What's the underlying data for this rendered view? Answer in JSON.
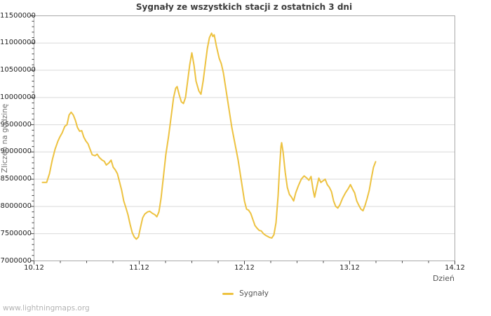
{
  "page": {
    "title": "Sygnały ze wszystkich stacji z ostatnich 3 dni",
    "watermark": "www.lightningmaps.org"
  },
  "colors": {
    "line": "#edc240",
    "grid": "#d9d9d9",
    "border": "#aaaaaa",
    "tick": "#444444"
  },
  "chart_data": {
    "type": "line",
    "title": "Sygnały ze wszystkich stacji z ostatnich 3 dni",
    "xlabel": "Dzień",
    "ylabel": "Zliczeń na godzinę",
    "grid": "horizontal-only",
    "line_color": "#edc240",
    "ylim": [
      7000000,
      11500000
    ],
    "y_tick_step": 500000,
    "y_minor_step": 100000,
    "y_ticks": [
      {
        "value": 7000000,
        "label": "7000000"
      },
      {
        "value": 7500000,
        "label": "7500000"
      },
      {
        "value": 8000000,
        "label": "8000000"
      },
      {
        "value": 8500000,
        "label": "8500000"
      },
      {
        "value": 9000000,
        "label": "9000000"
      },
      {
        "value": 9500000,
        "label": "9500000"
      },
      {
        "value": 10000000,
        "label": "10000000"
      },
      {
        "value": 10500000,
        "label": "10500000"
      },
      {
        "value": 11000000,
        "label": "11000000"
      },
      {
        "value": 11500000,
        "label": "11500000"
      }
    ],
    "x_range_days": [
      0,
      4
    ],
    "x_minor_step_days": 0.25,
    "x_ticks": [
      {
        "day": 0,
        "label": "10.12"
      },
      {
        "day": 1,
        "label": "11.12"
      },
      {
        "day": 2,
        "label": "12.12"
      },
      {
        "day": 3,
        "label": "13.12"
      },
      {
        "day": 4,
        "label": "14.12"
      }
    ],
    "legend": {
      "position": "bottom-center",
      "entries": [
        {
          "label": "Sygnały",
          "color": "#edc240"
        }
      ]
    },
    "series": [
      {
        "name": "Sygnały",
        "points": [
          [
            0.08,
            8440000
          ],
          [
            0.12,
            8440000
          ],
          [
            0.147,
            8600000
          ],
          [
            0.173,
            8850000
          ],
          [
            0.2,
            9050000
          ],
          [
            0.227,
            9200000
          ],
          [
            0.247,
            9280000
          ],
          [
            0.267,
            9350000
          ],
          [
            0.293,
            9470000
          ],
          [
            0.313,
            9500000
          ],
          [
            0.333,
            9680000
          ],
          [
            0.353,
            9730000
          ],
          [
            0.373,
            9680000
          ],
          [
            0.393,
            9580000
          ],
          [
            0.413,
            9450000
          ],
          [
            0.433,
            9380000
          ],
          [
            0.453,
            9390000
          ],
          [
            0.473,
            9270000
          ],
          [
            0.493,
            9200000
          ],
          [
            0.513,
            9150000
          ],
          [
            0.533,
            9050000
          ],
          [
            0.553,
            8950000
          ],
          [
            0.58,
            8930000
          ],
          [
            0.6,
            8960000
          ],
          [
            0.62,
            8900000
          ],
          [
            0.647,
            8850000
          ],
          [
            0.667,
            8830000
          ],
          [
            0.687,
            8760000
          ],
          [
            0.713,
            8800000
          ],
          [
            0.733,
            8850000
          ],
          [
            0.753,
            8720000
          ],
          [
            0.773,
            8670000
          ],
          [
            0.793,
            8600000
          ],
          [
            0.813,
            8450000
          ],
          [
            0.833,
            8300000
          ],
          [
            0.853,
            8100000
          ],
          [
            0.873,
            7980000
          ],
          [
            0.893,
            7850000
          ],
          [
            0.913,
            7670000
          ],
          [
            0.933,
            7520000
          ],
          [
            0.953,
            7440000
          ],
          [
            0.973,
            7400000
          ],
          [
            0.993,
            7440000
          ],
          [
            1.013,
            7620000
          ],
          [
            1.033,
            7790000
          ],
          [
            1.053,
            7860000
          ],
          [
            1.08,
            7900000
          ],
          [
            1.1,
            7910000
          ],
          [
            1.127,
            7870000
          ],
          [
            1.147,
            7850000
          ],
          [
            1.167,
            7810000
          ],
          [
            1.187,
            7900000
          ],
          [
            1.207,
            8150000
          ],
          [
            1.227,
            8500000
          ],
          [
            1.253,
            8950000
          ],
          [
            1.28,
            9300000
          ],
          [
            1.307,
            9700000
          ],
          [
            1.327,
            10000000
          ],
          [
            1.347,
            10170000
          ],
          [
            1.36,
            10200000
          ],
          [
            1.38,
            10050000
          ],
          [
            1.4,
            9920000
          ],
          [
            1.42,
            9890000
          ],
          [
            1.44,
            10000000
          ],
          [
            1.46,
            10300000
          ],
          [
            1.48,
            10600000
          ],
          [
            1.5,
            10820000
          ],
          [
            1.52,
            10600000
          ],
          [
            1.54,
            10300000
          ],
          [
            1.567,
            10120000
          ],
          [
            1.587,
            10060000
          ],
          [
            1.607,
            10300000
          ],
          [
            1.627,
            10600000
          ],
          [
            1.647,
            10900000
          ],
          [
            1.667,
            11100000
          ],
          [
            1.687,
            11180000
          ],
          [
            1.7,
            11120000
          ],
          [
            1.713,
            11150000
          ],
          [
            1.733,
            10950000
          ],
          [
            1.76,
            10720000
          ],
          [
            1.78,
            10620000
          ],
          [
            1.8,
            10450000
          ],
          [
            1.82,
            10200000
          ],
          [
            1.84,
            9950000
          ],
          [
            1.86,
            9700000
          ],
          [
            1.88,
            9450000
          ],
          [
            1.9,
            9250000
          ],
          [
            1.92,
            9050000
          ],
          [
            1.94,
            8850000
          ],
          [
            1.96,
            8600000
          ],
          [
            1.98,
            8350000
          ],
          [
            2.0,
            8100000
          ],
          [
            2.02,
            7950000
          ],
          [
            2.04,
            7930000
          ],
          [
            2.06,
            7870000
          ],
          [
            2.08,
            7760000
          ],
          [
            2.1,
            7650000
          ],
          [
            2.12,
            7600000
          ],
          [
            2.14,
            7560000
          ],
          [
            2.16,
            7550000
          ],
          [
            2.18,
            7500000
          ],
          [
            2.2,
            7470000
          ],
          [
            2.22,
            7450000
          ],
          [
            2.24,
            7430000
          ],
          [
            2.26,
            7420000
          ],
          [
            2.28,
            7480000
          ],
          [
            2.3,
            7700000
          ],
          [
            2.32,
            8200000
          ],
          [
            2.333,
            8700000
          ],
          [
            2.347,
            9100000
          ],
          [
            2.353,
            9170000
          ],
          [
            2.367,
            9000000
          ],
          [
            2.387,
            8630000
          ],
          [
            2.407,
            8350000
          ],
          [
            2.427,
            8220000
          ],
          [
            2.447,
            8170000
          ],
          [
            2.467,
            8100000
          ],
          [
            2.487,
            8250000
          ],
          [
            2.513,
            8380000
          ],
          [
            2.54,
            8500000
          ],
          [
            2.567,
            8560000
          ],
          [
            2.593,
            8520000
          ],
          [
            2.613,
            8480000
          ],
          [
            2.633,
            8550000
          ],
          [
            2.653,
            8300000
          ],
          [
            2.667,
            8170000
          ],
          [
            2.687,
            8350000
          ],
          [
            2.707,
            8520000
          ],
          [
            2.727,
            8440000
          ],
          [
            2.747,
            8470000
          ],
          [
            2.767,
            8500000
          ],
          [
            2.787,
            8400000
          ],
          [
            2.807,
            8350000
          ],
          [
            2.827,
            8270000
          ],
          [
            2.847,
            8100000
          ],
          [
            2.867,
            8000000
          ],
          [
            2.887,
            7970000
          ],
          [
            2.907,
            8030000
          ],
          [
            2.933,
            8150000
          ],
          [
            2.96,
            8250000
          ],
          [
            2.987,
            8330000
          ],
          [
            3.007,
            8400000
          ],
          [
            3.027,
            8320000
          ],
          [
            3.047,
            8250000
          ],
          [
            3.067,
            8100000
          ],
          [
            3.087,
            8020000
          ],
          [
            3.107,
            7950000
          ],
          [
            3.127,
            7920000
          ],
          [
            3.147,
            8020000
          ],
          [
            3.167,
            8150000
          ],
          [
            3.187,
            8300000
          ],
          [
            3.207,
            8520000
          ],
          [
            3.227,
            8720000
          ],
          [
            3.247,
            8820000
          ]
        ]
      }
    ]
  }
}
